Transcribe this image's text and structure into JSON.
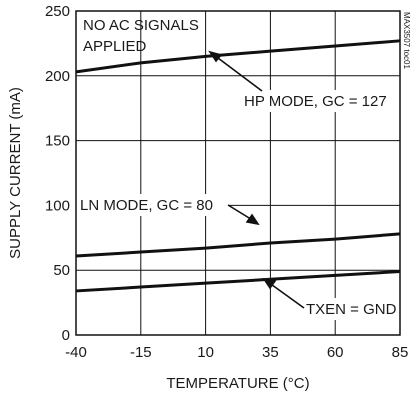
{
  "chart_data": {
    "type": "line",
    "xlabel": "TEMPERATURE (°C)",
    "ylabel": "SUPPLY CURRENT (mA)",
    "xlim": [
      -40,
      85
    ],
    "ylim": [
      0,
      250
    ],
    "xticks": [
      -40,
      -15,
      10,
      35,
      60,
      85
    ],
    "yticks": [
      0,
      50,
      100,
      150,
      200,
      250
    ],
    "grid": true,
    "series": [
      {
        "name": "HP MODE, GC = 127",
        "x": [
          -40,
          -15,
          10,
          35,
          60,
          85
        ],
        "y": [
          203,
          210,
          215,
          219,
          223,
          227
        ]
      },
      {
        "name": "LN MODE, GC = 80",
        "x": [
          -40,
          -15,
          10,
          35,
          60,
          85
        ],
        "y": [
          61,
          64,
          67,
          71,
          74,
          78
        ]
      },
      {
        "name": "TXEN = GND",
        "x": [
          -40,
          -15,
          10,
          35,
          60,
          85
        ],
        "y": [
          34,
          37,
          40,
          43,
          46,
          49
        ]
      }
    ],
    "annotations": {
      "no_ac": [
        "NO AC SIGNALS",
        "APPLIED"
      ],
      "hp": "HP MODE, GC = 127",
      "ln": "LN MODE, GC = 80",
      "txen": "TXEN = GND",
      "watermark": "MAX3507 toc01"
    }
  }
}
